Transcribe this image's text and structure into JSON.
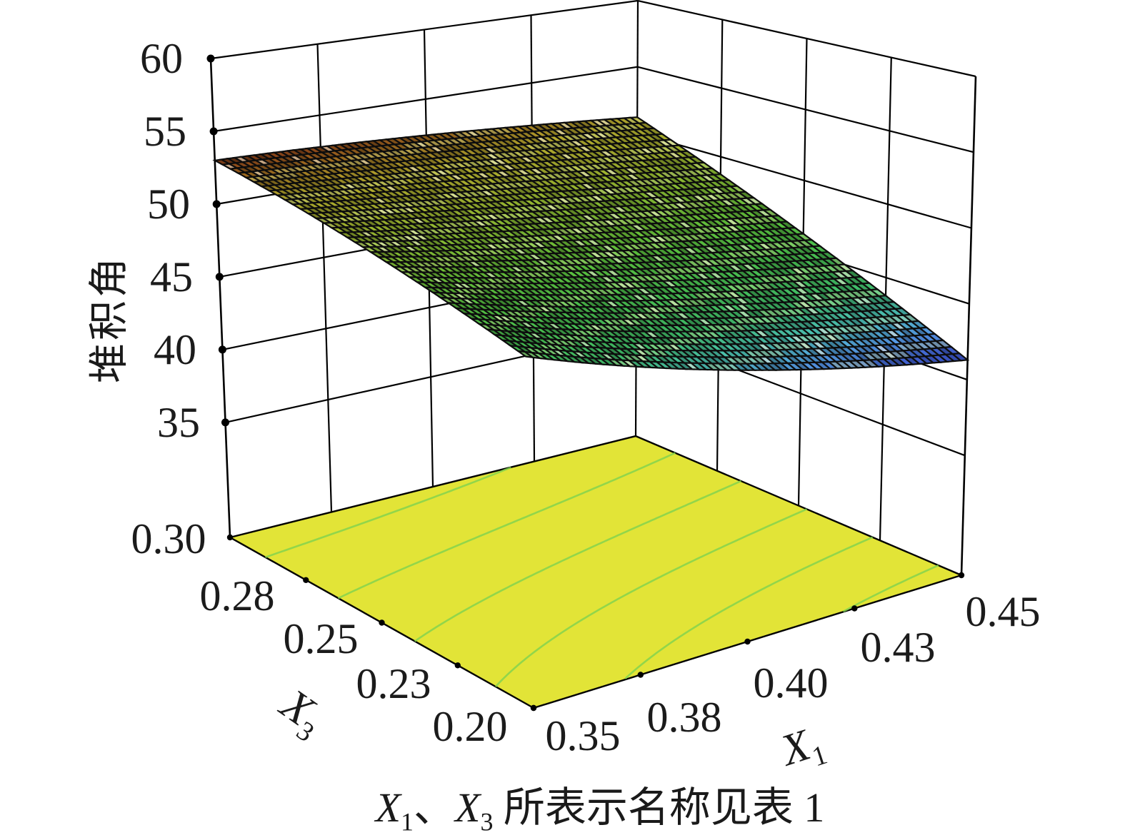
{
  "figure": {
    "background": "#ffffff",
    "caption": {
      "full": "X1、X3 所表示名称见表 1",
      "x1_base": "X",
      "x1_sub": "1",
      "separator": "、",
      "x3_base": "X",
      "x3_sub": "3",
      "rest": " 所表示名称见表 1"
    }
  },
  "axes": {
    "z": {
      "title": "堆积角",
      "ticks": [
        "60",
        "55",
        "50",
        "45",
        "40",
        "35"
      ]
    },
    "x1": {
      "title_base": "X",
      "title_sub": "1",
      "ticks": [
        "0.35",
        "0.38",
        "0.40",
        "0.43",
        "0.45"
      ]
    },
    "x3": {
      "title_base": "X",
      "title_sub": "3",
      "ticks": [
        "0.30",
        "0.28",
        "0.25",
        "0.23",
        "0.20"
      ]
    }
  },
  "chart_data": {
    "type": "3d-surface",
    "title": "",
    "xlabel": "X1",
    "ylabel": "X3",
    "zlabel": "堆积角",
    "x_range": [
      0.35,
      0.45
    ],
    "y_range": [
      0.2,
      0.3
    ],
    "z_range": [
      35,
      60
    ],
    "x_ticks": [
      0.35,
      0.38,
      0.4,
      0.43,
      0.45
    ],
    "y_ticks": [
      0.3,
      0.28,
      0.25,
      0.23,
      0.2
    ],
    "z_ticks": [
      60,
      55,
      50,
      45,
      40,
      35
    ],
    "corner_values": {
      "z_at_x035_y030": 53.0,
      "z_at_x045_y030": 51.2,
      "z_at_x035_y020": 45.1,
      "z_at_x045_y020": 41.3
    },
    "floor_contour_levels": [
      42,
      44,
      46,
      48,
      50,
      52
    ],
    "grid": {
      "nu": 64,
      "nv": 40
    },
    "render": {
      "z_floor": 27.1,
      "z_top": 60,
      "floor_corners": {
        "fb": [
          747,
          992
        ],
        "fr": [
          1346,
          806
        ],
        "fl": [
          322,
          753
        ],
        "fd": [
          890,
          611
        ]
      },
      "top_corners": {
        "tb": [
          727,
          92
        ],
        "tr": [
          1366,
          107
        ],
        "tl": [
          295,
          82
        ],
        "td": [
          893,
          1
        ]
      },
      "curvature": {
        "back": 1.2,
        "front": -1.8,
        "left": -0.8
      },
      "wall_z_lines": [
        35,
        40,
        45,
        50,
        55,
        60
      ],
      "wall_u_lines": [
        0.25,
        0.5,
        0.75
      ],
      "wall_v_lines": [
        0.25,
        0.5,
        0.75
      ],
      "colors": {
        "line": "#000000",
        "mesh_stroke": "#0d0d0d",
        "floor_fill": "#e2e437",
        "floor_contour": "#7ed24f",
        "glint": "#f0ead8"
      },
      "colormap": [
        [
          41.0,
          "#273390"
        ],
        [
          41.7,
          "#3752b2"
        ],
        [
          42.4,
          "#4a86c6"
        ],
        [
          43.2,
          "#41a49b"
        ],
        [
          44.2,
          "#38a45c"
        ],
        [
          45.5,
          "#3da244"
        ],
        [
          47.0,
          "#4fa433"
        ],
        [
          48.5,
          "#6fa02c"
        ],
        [
          50.0,
          "#8f9a28"
        ],
        [
          51.2,
          "#999027"
        ],
        [
          52.0,
          "#8f6a1e"
        ],
        [
          52.7,
          "#7a3f16"
        ],
        [
          53.4,
          "#5e2412"
        ]
      ]
    }
  }
}
